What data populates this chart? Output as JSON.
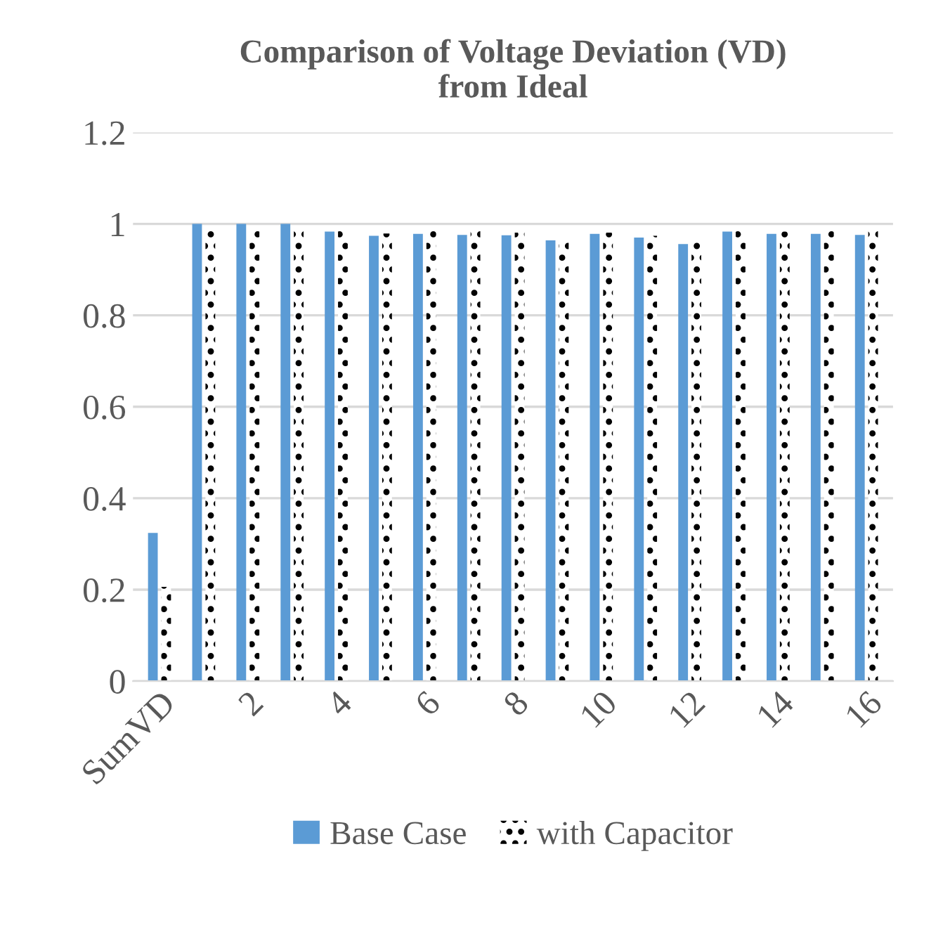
{
  "chart_data": {
    "type": "bar",
    "title": "Comparison of Voltage Deviation (VD)\nfrom Ideal",
    "categories": [
      "SumVD",
      null,
      "2",
      null,
      "4",
      null,
      "6",
      null,
      "8",
      null,
      "10",
      null,
      "12",
      null,
      "14",
      null,
      "16"
    ],
    "series": [
      {
        "name": "Base Case",
        "color": "#5b9bd5",
        "values": [
          0.324,
          1.0,
          1.0,
          1.0,
          0.983,
          0.974,
          0.978,
          0.976,
          0.975,
          0.964,
          0.978,
          0.97,
          0.956,
          0.983,
          0.978,
          0.978,
          0.976
        ]
      },
      {
        "name": "with Capacitor",
        "color": "#000000",
        "values": [
          0.206,
          0.99,
          0.99,
          0.99,
          0.988,
          0.979,
          0.991,
          0.994,
          0.981,
          0.963,
          0.981,
          0.974,
          0.961,
          0.99,
          0.983,
          0.993,
          0.994
        ]
      }
    ],
    "ylim": [
      0,
      1.2
    ],
    "yticks": [
      0,
      0.2,
      0.4,
      0.6,
      0.8,
      1,
      1.2
    ],
    "grid": "y",
    "legend": "bottom"
  }
}
